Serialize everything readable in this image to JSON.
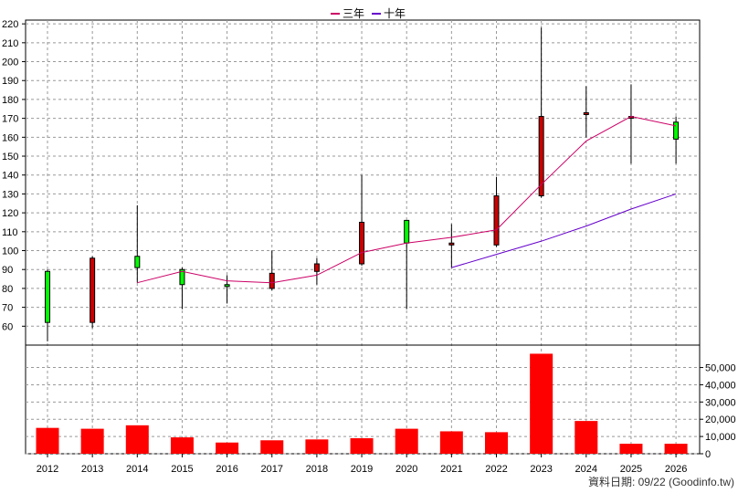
{
  "chart_data": {
    "type": "candlestick",
    "legend": [
      {
        "label": "三年",
        "color": "#cc0066"
      },
      {
        "label": "十年",
        "color": "#6600cc"
      }
    ],
    "years": [
      "2012",
      "2013",
      "2014",
      "2015",
      "2016",
      "2017",
      "2018",
      "2019",
      "2020",
      "2021",
      "2022",
      "2023",
      "2024",
      "2025",
      "2026"
    ],
    "price_axis": {
      "min": 50,
      "max": 222,
      "ticks": [
        60,
        70,
        80,
        90,
        100,
        110,
        120,
        130,
        140,
        150,
        160,
        170,
        180,
        190,
        200,
        210,
        220
      ],
      "grid": true
    },
    "candles": [
      {
        "year": "2012",
        "open": 89,
        "high": 90,
        "low": 52,
        "close": 62
      },
      {
        "year": "2013",
        "open": 62,
        "high": 97,
        "low": 59,
        "close": 96
      },
      {
        "year": "2014",
        "open": 97,
        "high": 124,
        "low": 83,
        "close": 91
      },
      {
        "year": "2015",
        "open": 90,
        "high": 91,
        "low": 69,
        "close": 82
      },
      {
        "year": "2016",
        "open": 82,
        "high": 87,
        "low": 72,
        "close": 81
      },
      {
        "year": "2017",
        "open": 80,
        "high": 100,
        "low": 79,
        "close": 88
      },
      {
        "year": "2018",
        "open": 89,
        "high": 96,
        "low": 82,
        "close": 93
      },
      {
        "year": "2019",
        "open": 93,
        "high": 140,
        "low": 92,
        "close": 115
      },
      {
        "year": "2020",
        "open": 116,
        "high": 116,
        "low": 69,
        "close": 104
      },
      {
        "year": "2021",
        "open": 103,
        "high": 114,
        "low": 91,
        "close": 104
      },
      {
        "year": "2022",
        "open": 103,
        "high": 139,
        "low": 102,
        "close": 129
      },
      {
        "year": "2023",
        "open": 129,
        "high": 218,
        "low": 128,
        "close": 171
      },
      {
        "year": "2024",
        "open": 172,
        "high": 187,
        "low": 160,
        "close": 173
      },
      {
        "year": "2025",
        "open": 171,
        "high": 188,
        "low": 146,
        "close": 171
      },
      {
        "year": "2026",
        "open": 168,
        "high": 171,
        "low": 146,
        "close": 159
      }
    ],
    "series": [
      {
        "name": "三年",
        "color": "#cc0066",
        "points": [
          [
            "2014",
            83
          ],
          [
            "2015",
            89
          ],
          [
            "2016",
            84
          ],
          [
            "2017",
            83
          ],
          [
            "2018",
            87
          ],
          [
            "2019",
            99
          ],
          [
            "2020",
            104
          ],
          [
            "2021",
            107
          ],
          [
            "2022",
            111
          ],
          [
            "2023",
            135
          ],
          [
            "2024",
            158
          ],
          [
            "2025",
            171
          ],
          [
            "2026",
            166
          ]
        ]
      },
      {
        "name": "十年",
        "color": "#6600cc",
        "points": [
          [
            "2021",
            91
          ],
          [
            "2022",
            98
          ],
          [
            "2023",
            105
          ],
          [
            "2024",
            113
          ],
          [
            "2025",
            122
          ],
          [
            "2026",
            130
          ]
        ]
      }
    ],
    "volume": {
      "axis": {
        "min": 0,
        "max": 63000,
        "ticks": [
          0,
          10000,
          20000,
          30000,
          40000,
          50000
        ],
        "tick_labels": [
          "0",
          "10,000",
          "20,000",
          "30,000",
          "40,000",
          "50,000"
        ]
      },
      "values": [
        15000,
        14500,
        16500,
        9500,
        6500,
        7800,
        8300,
        9000,
        14500,
        13000,
        12500,
        58000,
        19000,
        5800,
        5800
      ],
      "color": "#ff0000"
    }
  },
  "footer": "資料日期: 09/22  (Goodinfo.tw)"
}
